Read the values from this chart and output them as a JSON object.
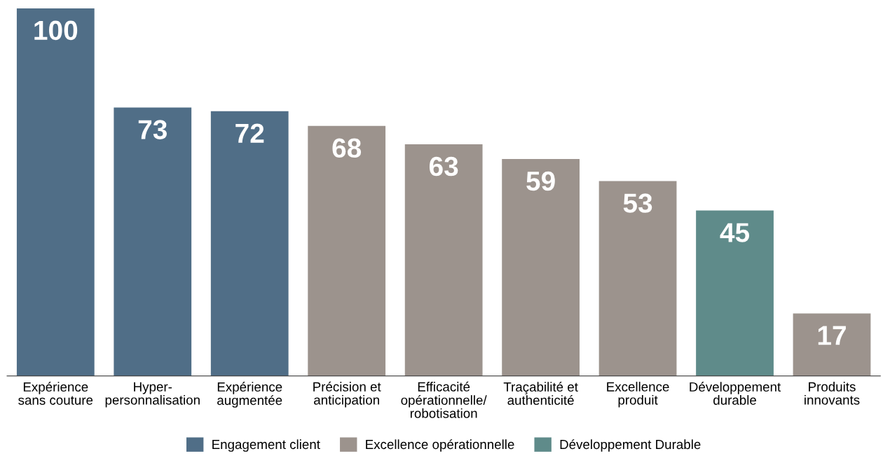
{
  "chart_data": {
    "type": "bar",
    "stacked": true,
    "data_labels": true,
    "legend": "bottom",
    "grid": false,
    "categories": [
      "Expérience\nsans couture",
      "Hyper-\npersonnalisation",
      "Expérience\naugmentée",
      "Précision et\nanticipation",
      "Efficacité\nopérationnelle/\nrobotisation",
      "Traçabilité et\nauthenticité",
      "Excellence\nproduit",
      "Développement\ndurable",
      "Produits\ninnovants"
    ],
    "series": [
      {
        "name": "Engagement client",
        "color": "#506e87",
        "values": [
          100,
          73,
          72,
          null,
          null,
          null,
          null,
          null,
          null
        ]
      },
      {
        "name": "Excellence opérationnelle",
        "color": "#9c938d",
        "values": [
          null,
          null,
          null,
          68,
          63,
          59,
          53,
          null,
          17
        ]
      },
      {
        "name": "Développement Durable",
        "color": "#5f8b8a",
        "values": [
          null,
          null,
          null,
          null,
          null,
          null,
          null,
          45,
          null
        ]
      }
    ]
  }
}
